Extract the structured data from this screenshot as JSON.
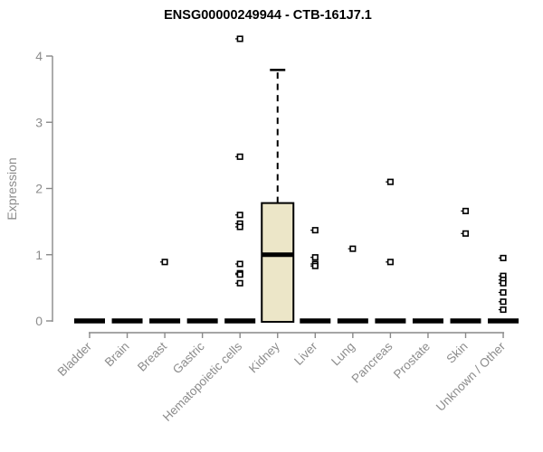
{
  "page": {
    "background": "#ffffff"
  },
  "chart_data": {
    "type": "boxplot",
    "title": "ENSG00000249944 - CTB-161J7.1",
    "ylabel": "Expression",
    "xlabel": "",
    "ylim": [
      0,
      4
    ],
    "yticks": [
      0,
      1,
      2,
      3,
      4
    ],
    "grid": false,
    "legend_position": "none",
    "categories": [
      "Bladder",
      "Brain",
      "Breast",
      "Gastric",
      "Hematopoietic cells",
      "Kidney",
      "Liver",
      "Lung",
      "Pancreas",
      "Prostate",
      "Skin",
      "Unknown / Other"
    ],
    "boxes": [
      {
        "category": "Bladder",
        "median": 0,
        "q1": 0,
        "q3": 0,
        "whisker_low": 0,
        "whisker_high": 0,
        "outliers": []
      },
      {
        "category": "Brain",
        "median": 0,
        "q1": 0,
        "q3": 0,
        "whisker_low": 0,
        "whisker_high": 0,
        "outliers": []
      },
      {
        "category": "Breast",
        "median": 0,
        "q1": 0,
        "q3": 0,
        "whisker_low": 0,
        "whisker_high": 0,
        "outliers": [
          0.89
        ]
      },
      {
        "category": "Gastric",
        "median": 0,
        "q1": 0,
        "q3": 0,
        "whisker_low": 0,
        "whisker_high": 0,
        "outliers": []
      },
      {
        "category": "Hematopoietic cells",
        "median": 0,
        "q1": 0,
        "q3": 0,
        "whisker_low": 0,
        "whisker_high": 0,
        "outliers": [
          4.26,
          2.48,
          1.6,
          1.47,
          1.42,
          0.86,
          0.72,
          0.7,
          0.57
        ]
      },
      {
        "category": "Kidney",
        "median": 1.0,
        "q1": 0,
        "q3": 1.78,
        "whisker_low": 0,
        "whisker_high": 3.79,
        "outliers": []
      },
      {
        "category": "Liver",
        "median": 0,
        "q1": 0,
        "q3": 0,
        "whisker_low": 0,
        "whisker_high": 0,
        "outliers": [
          1.37,
          0.96,
          0.86,
          0.83
        ]
      },
      {
        "category": "Lung",
        "median": 0,
        "q1": 0,
        "q3": 0,
        "whisker_low": 0,
        "whisker_high": 0,
        "outliers": [
          1.09
        ]
      },
      {
        "category": "Pancreas",
        "median": 0,
        "q1": 0,
        "q3": 0,
        "whisker_low": 0,
        "whisker_high": 0,
        "outliers": [
          2.1,
          0.89
        ]
      },
      {
        "category": "Prostate",
        "median": 0,
        "q1": 0,
        "q3": 0,
        "whisker_low": 0,
        "whisker_high": 0,
        "outliers": []
      },
      {
        "category": "Skin",
        "median": 0,
        "q1": 0,
        "q3": 0,
        "whisker_low": 0,
        "whisker_high": 0,
        "outliers": [
          1.66,
          1.32
        ]
      },
      {
        "category": "Unknown / Other",
        "median": 0,
        "q1": 0,
        "q3": 0,
        "whisker_low": 0,
        "whisker_high": 0,
        "outliers": [
          0.95,
          0.68,
          0.62,
          0.57,
          0.43,
          0.29,
          0.17
        ]
      }
    ],
    "colors": {
      "box_fill": "#ece6c8",
      "box_stroke": "#000000",
      "median": "#000000",
      "zero_bar": "#000000",
      "outlier_stroke": "#000000",
      "outlier_fill": "#ffffff",
      "axis": "#898989",
      "tick_label": "#8c8c8c",
      "title": "#000000"
    }
  }
}
